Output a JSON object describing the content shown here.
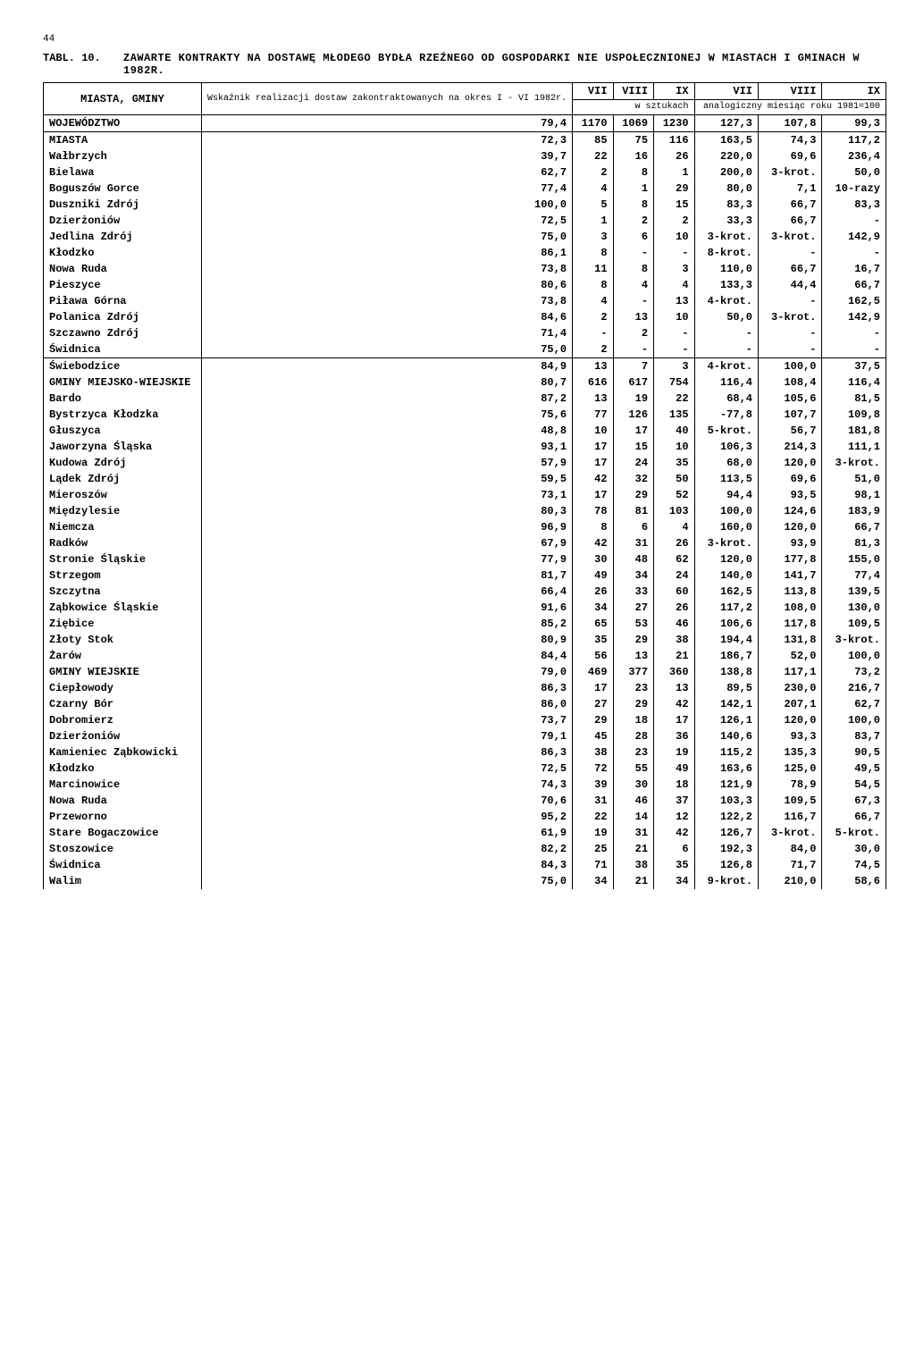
{
  "page_number": "44",
  "table_label": "TABL. 10.",
  "table_title": "ZAWARTE KONTRAKTY NA DOSTAWĘ MŁODEGO BYDŁA RZEŹNEGO OD GOSPODARKI NIE USPOŁECZNIONEJ W MIASTACH I GMINACH W 1982R.",
  "header": {
    "col_name": "MIASTA, GMINY",
    "col_wskaznik": "Wskaźnik realizacji dostaw zakontraktowanych na okres I - VI 1982r.",
    "months": [
      "VII",
      "VIII",
      "IX",
      "VII",
      "VIII",
      "IX"
    ],
    "sub_left": "w sztukach",
    "sub_right": "analogiczny miesiąc roku 1981=100"
  },
  "rows": [
    {
      "name": "WOJEWÓDZTWO",
      "v": [
        "79,4",
        "1170",
        "1069",
        "1230",
        "127,3",
        "107,8",
        "99,3"
      ],
      "sep": true
    },
    {
      "name": "MIASTA",
      "v": [
        "72,3",
        "85",
        "75",
        "116",
        "163,5",
        "74,3",
        "117,2"
      ]
    },
    {
      "name": "Wałbrzych",
      "v": [
        "39,7",
        "22",
        "16",
        "26",
        "220,0",
        "69,6",
        "236,4"
      ]
    },
    {
      "name": "Bielawa",
      "v": [
        "62,7",
        "2",
        "8",
        "1",
        "200,0",
        "3-krot.",
        "50,0"
      ]
    },
    {
      "name": "Boguszów Gorce",
      "v": [
        "77,4",
        "4",
        "1",
        "29",
        "80,0",
        "7,1",
        "10-razy"
      ]
    },
    {
      "name": "Duszniki Zdrój",
      "v": [
        "100,0",
        "5",
        "8",
        "15",
        "83,3",
        "66,7",
        "83,3"
      ]
    },
    {
      "name": "Dzierżoniów",
      "v": [
        "72,5",
        "1",
        "2",
        "2",
        "33,3",
        "66,7",
        "-"
      ]
    },
    {
      "name": "Jedlina Zdrój",
      "v": [
        "75,0",
        "3",
        "6",
        "10",
        "3-krot.",
        "3-krot.",
        "142,9"
      ]
    },
    {
      "name": "Kłodzko",
      "v": [
        "86,1",
        "8",
        "-",
        "-",
        "8-krot.",
        "-",
        "-"
      ]
    },
    {
      "name": "Nowa Ruda",
      "v": [
        "73,8",
        "11",
        "8",
        "3",
        "110,0",
        "66,7",
        "16,7"
      ]
    },
    {
      "name": "Pieszyce",
      "v": [
        "80,6",
        "8",
        "4",
        "4",
        "133,3",
        "44,4",
        "66,7"
      ]
    },
    {
      "name": "Piława Górna",
      "v": [
        "73,8",
        "4",
        "-",
        "13",
        "4-krot.",
        "-",
        "162,5"
      ]
    },
    {
      "name": "Polanica Zdrój",
      "v": [
        "84,6",
        "2",
        "13",
        "10",
        "50,0",
        "3-krot.",
        "142,9"
      ]
    },
    {
      "name": "Szczawno Zdrój",
      "v": [
        "71,4",
        "-",
        "2",
        "-",
        "-",
        "-",
        "-"
      ]
    },
    {
      "name": "Świdnica",
      "v": [
        "75,0",
        "2",
        "-",
        "-",
        "-",
        "-",
        "-"
      ],
      "sep": true
    },
    {
      "name": "Świebodzice",
      "v": [
        "84,9",
        "13",
        "7",
        "3",
        "4-krot.",
        "100,0",
        "37,5"
      ]
    },
    {
      "name": "GMINY MIEJSKO-WIEJSKIE",
      "v": [
        "80,7",
        "616",
        "617",
        "754",
        "116,4",
        "108,4",
        "116,4"
      ]
    },
    {
      "name": "Bardo",
      "v": [
        "87,2",
        "13",
        "19",
        "22",
        "68,4",
        "105,6",
        "81,5"
      ]
    },
    {
      "name": "Bystrzyca Kłodzka",
      "v": [
        "75,6",
        "77",
        "126",
        "135",
        "-77,8",
        "107,7",
        "109,8"
      ]
    },
    {
      "name": "Głuszyca",
      "v": [
        "48,8",
        "10",
        "17",
        "40",
        "5-krot.",
        "56,7",
        "181,8"
      ]
    },
    {
      "name": "Jaworzyna Śląska",
      "v": [
        "93,1",
        "17",
        "15",
        "10",
        "106,3",
        "214,3",
        "111,1"
      ]
    },
    {
      "name": "Kudowa Zdrój",
      "v": [
        "57,9",
        "17",
        "24",
        "35",
        "68,0",
        "120,0",
        "3-krot."
      ]
    },
    {
      "name": "Lądek Zdrój",
      "v": [
        "59,5",
        "42",
        "32",
        "50",
        "113,5",
        "69,6",
        "51,0"
      ]
    },
    {
      "name": "Mieroszów",
      "v": [
        "73,1",
        "17",
        "29",
        "52",
        "94,4",
        "93,5",
        "98,1"
      ]
    },
    {
      "name": "Międzylesie",
      "v": [
        "80,3",
        "78",
        "81",
        "103",
        "100,0",
        "124,6",
        "183,9"
      ]
    },
    {
      "name": "Niemcza",
      "v": [
        "96,9",
        "8",
        "6",
        "4",
        "160,0",
        "120,0",
        "66,7"
      ]
    },
    {
      "name": "Radków",
      "v": [
        "67,9",
        "42",
        "31",
        "26",
        "3-krot.",
        "93,9",
        "81,3"
      ]
    },
    {
      "name": "Stronie Śląskie",
      "v": [
        "77,9",
        "30",
        "48",
        "62",
        "120,0",
        "177,8",
        "155,0"
      ]
    },
    {
      "name": "Strzegom",
      "v": [
        "81,7",
        "49",
        "34",
        "24",
        "140,0",
        "141,7",
        "77,4"
      ]
    },
    {
      "name": "Szczytna",
      "v": [
        "66,4",
        "26",
        "33",
        "60",
        "162,5",
        "113,8",
        "139,5"
      ]
    },
    {
      "name": "Ząbkowice Śląskie",
      "v": [
        "91,6",
        "34",
        "27",
        "26",
        "117,2",
        "108,0",
        "130,0"
      ]
    },
    {
      "name": "Ziębice",
      "v": [
        "85,2",
        "65",
        "53",
        "46",
        "106,6",
        "117,8",
        "109,5"
      ]
    },
    {
      "name": "Złoty Stok",
      "v": [
        "80,9",
        "35",
        "29",
        "38",
        "194,4",
        "131,8",
        "3-krot."
      ]
    },
    {
      "name": "Żarów",
      "v": [
        "84,4",
        "56",
        "13",
        "21",
        "186,7",
        "52,0",
        "100,0"
      ]
    },
    {
      "name": "GMINY WIEJSKIE",
      "v": [
        "79,0",
        "469",
        "377",
        "360",
        "138,8",
        "117,1",
        "73,2"
      ]
    },
    {
      "name": "Ciepłowody",
      "v": [
        "86,3",
        "17",
        "23",
        "13",
        "89,5",
        "230,0",
        "216,7"
      ]
    },
    {
      "name": "Czarny Bór",
      "v": [
        "86,0",
        "27",
        "29",
        "42",
        "142,1",
        "207,1",
        "62,7"
      ]
    },
    {
      "name": "Dobromierz",
      "v": [
        "73,7",
        "29",
        "18",
        "17",
        "126,1",
        "120,0",
        "100,0"
      ]
    },
    {
      "name": "Dzierżoniów",
      "v": [
        "79,1",
        "45",
        "28",
        "36",
        "140,6",
        "93,3",
        "83,7"
      ]
    },
    {
      "name": "Kamieniec Ząbkowicki",
      "v": [
        "86,3",
        "38",
        "23",
        "19",
        "115,2",
        "135,3",
        "90,5"
      ]
    },
    {
      "name": "Kłodzko",
      "v": [
        "72,5",
        "72",
        "55",
        "49",
        "163,6",
        "125,0",
        "49,5"
      ]
    },
    {
      "name": "Marcinowice",
      "v": [
        "74,3",
        "39",
        "30",
        "18",
        "121,9",
        "78,9",
        "54,5"
      ]
    },
    {
      "name": "Nowa Ruda",
      "v": [
        "70,6",
        "31",
        "46",
        "37",
        "103,3",
        "109,5",
        "67,3"
      ]
    },
    {
      "name": "Przeworno",
      "v": [
        "95,2",
        "22",
        "14",
        "12",
        "122,2",
        "116,7",
        "66,7"
      ]
    },
    {
      "name": "Stare Bogaczowice",
      "v": [
        "61,9",
        "19",
        "31",
        "42",
        "126,7",
        "3-krot.",
        "5-krot."
      ]
    },
    {
      "name": "Stoszowice",
      "v": [
        "82,2",
        "25",
        "21",
        "6",
        "192,3",
        "84,0",
        "30,0"
      ]
    },
    {
      "name": "Świdnica",
      "v": [
        "84,3",
        "71",
        "38",
        "35",
        "126,8",
        "71,7",
        "74,5"
      ]
    },
    {
      "name": "Walim",
      "v": [
        "75,0",
        "34",
        "21",
        "34",
        "9-krot.",
        "210,0",
        "58,6"
      ]
    }
  ]
}
